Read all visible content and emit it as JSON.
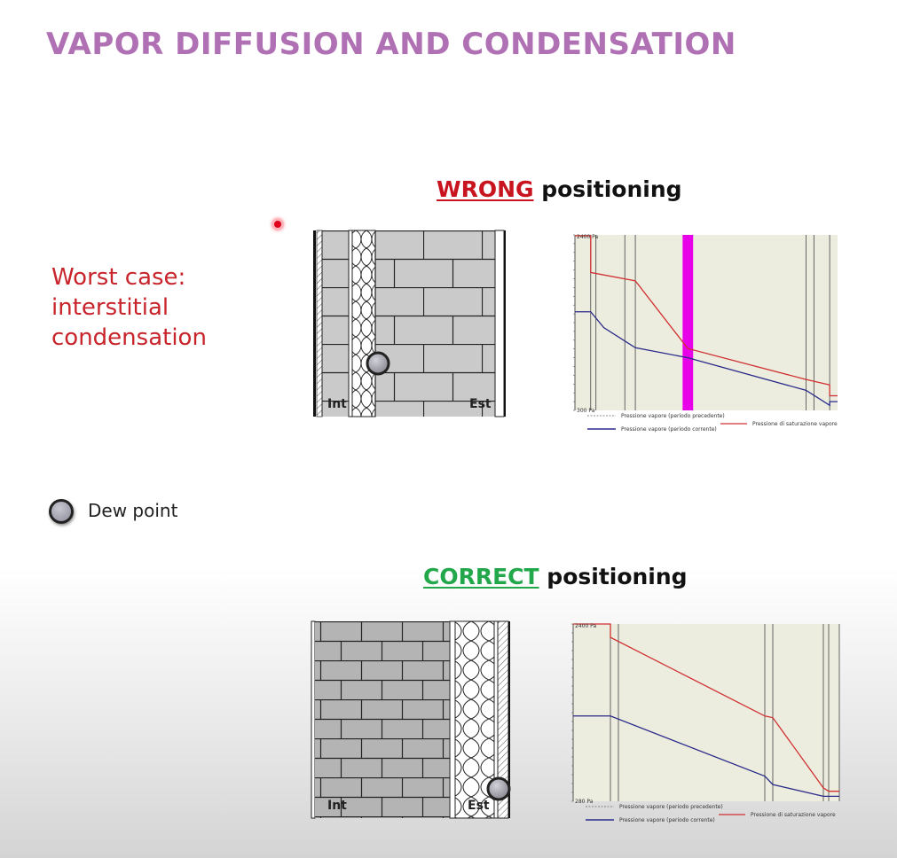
{
  "title": "VAPOR DIFFUSION AND CONDENSATION",
  "wrong_section": {
    "keyword": "WRONG",
    "rest": " positioning",
    "keyword_color": "#c8141e"
  },
  "correct_section": {
    "keyword": "CORRECT",
    "rest": " positioning",
    "keyword_color": "#22a84a"
  },
  "worst_case": {
    "line1": "Worst case:",
    "line2": "interstitial",
    "line3": "condensation"
  },
  "legend": {
    "dew_point": "Dew point",
    "dew_icon": "dew-point-circle-icon"
  },
  "wall_labels": {
    "interior": "Int",
    "exterior": "Est"
  },
  "chart_data": [
    {
      "type": "line",
      "ylim": [
        300,
        2400
      ],
      "y_tick_labels": [
        "2400 Pa",
        "300 Pa"
      ],
      "legend": {
        "previous": "Pressione vapore (periodo precedente)",
        "current": "Pressione vapore (periodo corrente)",
        "saturation": "Pressione di saturazione vapore"
      },
      "series": [
        {
          "name": "Pressione di saturazione vapore",
          "color": "#d03030",
          "x": [
            0,
            6,
            6,
            23,
            43,
            88,
            97,
            97,
            100
          ],
          "y": [
            2390,
            2390,
            1950,
            1850,
            1040,
            670,
            605,
            475,
            475
          ]
        },
        {
          "name": "Pressione vapore (periodo corrente)",
          "color": "#2a2a8a",
          "x": [
            0,
            6,
            11,
            23,
            43,
            88,
            97,
            97,
            100
          ],
          "y": [
            1480,
            1480,
            1290,
            1050,
            930,
            540,
            360,
            405,
            405
          ]
        }
      ],
      "highlight": {
        "x_start": 41,
        "x_end": 45,
        "color": "#e800e8"
      },
      "layer_lines_x": [
        6,
        8,
        19,
        23,
        43,
        88,
        91,
        97
      ]
    },
    {
      "type": "line",
      "ylim": [
        280,
        2400
      ],
      "y_tick_labels": [
        "2400 Pa",
        "280 Pa"
      ],
      "legend": {
        "previous": "Pressione vapore (periodo precedente)",
        "current": "Pressione vapore (periodo corrente)",
        "saturation": "Pressione di saturazione vapore"
      },
      "series": [
        {
          "name": "Pressione di saturazione vapore",
          "color": "#d03030",
          "x": [
            0,
            14,
            14,
            72,
            75,
            94,
            96,
            100
          ],
          "y": [
            2400,
            2400,
            2240,
            1300,
            1280,
            440,
            400,
            400
          ]
        },
        {
          "name": "Pressione vapore (periodo corrente)",
          "color": "#2a2a8a",
          "x": [
            0,
            14,
            72,
            75,
            94,
            100
          ],
          "y": [
            1300,
            1300,
            580,
            480,
            340,
            340
          ]
        }
      ],
      "layer_lines_x": [
        14,
        17,
        72,
        75,
        94,
        96,
        100
      ]
    }
  ]
}
